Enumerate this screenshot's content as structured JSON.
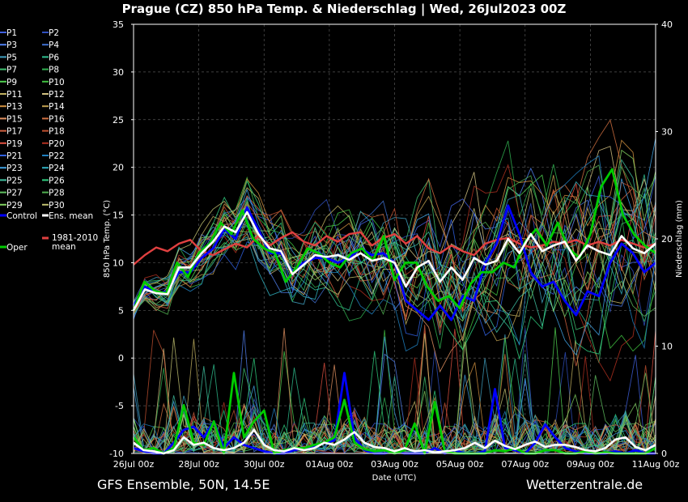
{
  "header": {
    "title": "Prague  (CZ)  850 hPa Temp. & Niederschlag | Wed, 26Jul2023 00Z"
  },
  "footer": {
    "left": "GFS Ensemble, 50N, 14.5E",
    "right": "Wetterzentrale.de"
  },
  "colors": {
    "background": "#000000",
    "control": "#0000ff",
    "oper": "#00cc00",
    "ens_mean": "#ffffff",
    "climate_mean": "#e04040"
  },
  "chart_data": {
    "type": "line",
    "title": "Prague  (CZ)  850 hPa Temp. & Niederschlag | Wed, 26Jul2023 00Z",
    "xlabel": "Date (UTC)",
    "ylabel": "850 hPa Temp. (°C)",
    "y2label": "Niederschlag (mm)",
    "x_ticks": [
      "26Jul 00z",
      "28Jul 00z",
      "30Jul 00z",
      "01Aug 00z",
      "03Aug 00z",
      "05Aug 00z",
      "07Aug 00z",
      "09Aug 00z",
      "11Aug 00z"
    ],
    "ylim": [
      -10,
      35
    ],
    "y_ticks": [
      35,
      30,
      25,
      20,
      15,
      10,
      5,
      0,
      -5,
      -10
    ],
    "y2lim": [
      0,
      40
    ],
    "y2_ticks": [
      40,
      30,
      20,
      10,
      0
    ],
    "grid": true,
    "legend_position": "left",
    "legend": [
      {
        "label": "P1",
        "color": "#4060e0"
      },
      {
        "label": "P2",
        "color": "#3050c0"
      },
      {
        "label": "P3",
        "color": "#5080f0"
      },
      {
        "label": "P4",
        "color": "#4070d0"
      },
      {
        "label": "P5",
        "color": "#40a0c0"
      },
      {
        "label": "P6",
        "color": "#30c090"
      },
      {
        "label": "P7",
        "color": "#40c070"
      },
      {
        "label": "P8",
        "color": "#30b050"
      },
      {
        "label": "P9",
        "color": "#50d050"
      },
      {
        "label": "P10",
        "color": "#40c040"
      },
      {
        "label": "P11",
        "color": "#c0b060"
      },
      {
        "label": "P12",
        "color": "#d0c080"
      },
      {
        "label": "P13",
        "color": "#d09040"
      },
      {
        "label": "P14",
        "color": "#c0a050"
      },
      {
        "label": "P15",
        "color": "#e09060"
      },
      {
        "label": "P16",
        "color": "#d07040"
      },
      {
        "label": "P17",
        "color": "#d06040"
      },
      {
        "label": "P18",
        "color": "#c05030"
      },
      {
        "label": "P19",
        "color": "#e05040"
      },
      {
        "label": "P20",
        "color": "#b03020"
      },
      {
        "label": "P21",
        "color": "#3060e0"
      },
      {
        "label": "P22",
        "color": "#2080c0"
      },
      {
        "label": "P23",
        "color": "#40a0e0"
      },
      {
        "label": "P24",
        "color": "#30b0c0"
      },
      {
        "label": "P25",
        "color": "#40c0a0"
      },
      {
        "label": "P26",
        "color": "#30d080"
      },
      {
        "label": "P27",
        "color": "#60c060"
      },
      {
        "label": "P28",
        "color": "#50b050"
      },
      {
        "label": "P29",
        "color": "#80d060"
      },
      {
        "label": "P30",
        "color": "#c0c070"
      },
      {
        "label": "Control",
        "color": "#0000ff"
      },
      {
        "label": "Ens. mean",
        "color": "#ffffff"
      },
      {
        "label": "1981-2010 mean",
        "color": "#e04040"
      },
      {
        "label": "Oper",
        "color": "#00cc00"
      }
    ],
    "series": [
      {
        "name": "Ens. mean",
        "kind": "temperature",
        "color": "#ffffff",
        "values": [
          5,
          7.2,
          6.8,
          6.7,
          9.5,
          9.5,
          11,
          12.2,
          13.8,
          13.2,
          15.3,
          13,
          11.5,
          11.2,
          8.8,
          9.8,
          10.8,
          10.6,
          10.8,
          10.3,
          11,
          10.2,
          10.5,
          10,
          7.5,
          9.5,
          10.2,
          8,
          9.5,
          8.2,
          10.5,
          9.8,
          10.2,
          12.5,
          11,
          13,
          11.2,
          11.8,
          12.2,
          10.2,
          11.8,
          11.2,
          10.8,
          12.8,
          11.5,
          11,
          12
        ]
      },
      {
        "name": "1981-2010 mean",
        "kind": "temperature",
        "color": "#e04040",
        "values": [
          9.8,
          10.8,
          11.6,
          11.2,
          12,
          12.4,
          11.2,
          10.8,
          11.4,
          12,
          11.6,
          12.8,
          11.8,
          12.6,
          13.2,
          12.2,
          11.8,
          12.8,
          12.2,
          13,
          13.2,
          11.8,
          12.6,
          13,
          12,
          12.8,
          11.5,
          11,
          11.8,
          11.2,
          10.8,
          12,
          12.4,
          12.6,
          12,
          11.6,
          11.8,
          12.2,
          12,
          12.4,
          11.8,
          12.2,
          11.8,
          12.4,
          12,
          11.6,
          12
        ]
      },
      {
        "name": "Oper",
        "kind": "temperature",
        "color": "#00cc00",
        "values": [
          5,
          8,
          7,
          6.8,
          10,
          8.5,
          11,
          12,
          14.2,
          13,
          15.5,
          12.5,
          11.5,
          11,
          8,
          9.5,
          11.5,
          11,
          10,
          9.5,
          11,
          11.5,
          10.2,
          12.8,
          8.2,
          10,
          10,
          7.5,
          6,
          6.5,
          5.2,
          7.8,
          9,
          9,
          10,
          9.5,
          12.2,
          13.5,
          11.8,
          14.2,
          11.5,
          10.5,
          13,
          18,
          19.8,
          15,
          13,
          11.8,
          11
        ]
      },
      {
        "name": "Control",
        "kind": "temperature",
        "color": "#0000ff",
        "values": [
          5.5,
          7.5,
          6.8,
          7,
          9,
          9,
          10.5,
          11.5,
          13.5,
          12.5,
          15.8,
          13.5,
          11,
          11,
          9,
          10,
          10.5,
          10.5,
          10,
          10.5,
          11.5,
          10.8,
          11,
          10,
          6,
          5,
          4,
          5.5,
          4,
          6.5,
          6,
          10,
          12,
          16,
          13,
          9,
          7.5,
          8,
          6,
          4.5,
          7,
          6.5,
          10,
          12,
          11,
          9,
          10
        ]
      },
      {
        "name": "Ens. mean",
        "kind": "precipitation",
        "color": "#ffffff",
        "values": [
          1,
          0.3,
          0.2,
          0,
          0.3,
          1.5,
          0.8,
          1,
          0.5,
          0.3,
          0.5,
          1,
          2.2,
          0.8,
          0.3,
          0.2,
          0.5,
          0.3,
          0.5,
          1,
          0.8,
          1.3,
          2,
          1,
          0.6,
          0.5,
          0.2,
          0.5,
          0.2,
          0.3,
          0.1,
          0.2,
          0.3,
          0.5,
          1,
          0.5,
          1.2,
          0.7,
          0.4,
          0.8,
          1.1,
          0.6,
          0.8,
          0.8,
          0.6,
          0.3,
          0.2,
          0.5,
          1.3,
          1.5,
          0.6,
          0.3,
          0.8
        ]
      },
      {
        "name": "Oper",
        "kind": "precipitation",
        "color": "#00cc00",
        "values": [
          1.5,
          0.3,
          0.5,
          0,
          0.5,
          4.5,
          1,
          0.8,
          3,
          0,
          7.5,
          1.5,
          3,
          4,
          0,
          0.3,
          0.5,
          0.5,
          0.8,
          1,
          1.5,
          5,
          1,
          0.4,
          0.2,
          0.3,
          0,
          0.3,
          2.8,
          0,
          4.8,
          0.2,
          0,
          0,
          0,
          0,
          0.3,
          0.2,
          0.5,
          0,
          0,
          0.3,
          0.3,
          0,
          0,
          0.2,
          0,
          0.1,
          0,
          0,
          0,
          0,
          0.5
        ]
      },
      {
        "name": "Control",
        "kind": "precipitation",
        "color": "#0000ff",
        "values": [
          0.5,
          0.2,
          0,
          0,
          1,
          2.2,
          2.5,
          1.5,
          3,
          0.5,
          1.5,
          0.8,
          0.5,
          0.2,
          0,
          0,
          0.3,
          0.5,
          0.6,
          1,
          1.2,
          7.5,
          1.5,
          0.3,
          0,
          0,
          0.2,
          0,
          0,
          0,
          0.5,
          0,
          0.3,
          0,
          0,
          0.2,
          6,
          0.5,
          0.3,
          0,
          1,
          2.7,
          1.5,
          0.5,
          0.2,
          0,
          0,
          0,
          0.2,
          0,
          0.3,
          0,
          0
        ]
      }
    ]
  }
}
